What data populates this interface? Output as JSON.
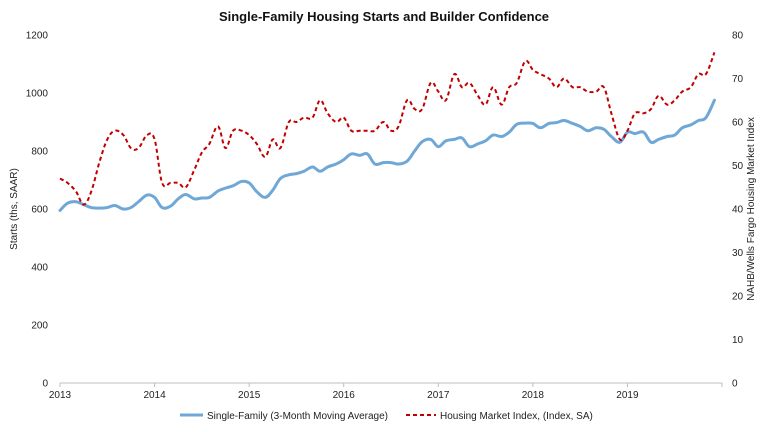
{
  "chart_data": {
    "type": "line",
    "title": "Single-Family Housing Starts and Builder Confidence",
    "ylabel": "Starts (ths, SAAR)",
    "y2label": "NAHB/Wells Fargo Housing Market Index",
    "ylim": [
      0,
      1200
    ],
    "y2lim": [
      0,
      80
    ],
    "yticks": [
      "0",
      "200",
      "400",
      "600",
      "800",
      "1000",
      "1200"
    ],
    "y2ticks": [
      "0",
      "10",
      "20",
      "30",
      "40",
      "50",
      "60",
      "70",
      "80"
    ],
    "xticks": [
      "2013",
      "2014",
      "2015",
      "2016",
      "2017",
      "2018",
      "2019"
    ],
    "xrange": [
      2013.0,
      2020.0
    ],
    "series": [
      {
        "name": "Single-Family (3-Month Moving Average)",
        "axis": "left",
        "color": "#6fa8d6",
        "style": "solid",
        "x": [
          2013.0,
          2013.08,
          2013.17,
          2013.25,
          2013.33,
          2013.42,
          2013.5,
          2013.58,
          2013.67,
          2013.75,
          2013.83,
          2013.92,
          2014.0,
          2014.08,
          2014.17,
          2014.25,
          2014.33,
          2014.42,
          2014.5,
          2014.58,
          2014.67,
          2014.75,
          2014.83,
          2014.92,
          2015.0,
          2015.08,
          2015.17,
          2015.25,
          2015.33,
          2015.42,
          2015.5,
          2015.58,
          2015.67,
          2015.75,
          2015.83,
          2015.92,
          2016.0,
          2016.08,
          2016.17,
          2016.25,
          2016.33,
          2016.42,
          2016.5,
          2016.58,
          2016.67,
          2016.75,
          2016.83,
          2016.92,
          2017.0,
          2017.08,
          2017.17,
          2017.25,
          2017.33,
          2017.42,
          2017.5,
          2017.58,
          2017.67,
          2017.75,
          2017.83,
          2017.92,
          2018.0,
          2018.08,
          2018.17,
          2018.25,
          2018.33,
          2018.42,
          2018.5,
          2018.58,
          2018.67,
          2018.75,
          2018.83,
          2018.92,
          2019.0,
          2019.08,
          2019.17,
          2019.25,
          2019.33,
          2019.42,
          2019.5,
          2019.58,
          2019.67,
          2019.75,
          2019.83,
          2019.92
        ],
        "values": [
          595,
          620,
          625,
          615,
          605,
          603,
          605,
          612,
          600,
          605,
          625,
          648,
          640,
          605,
          610,
          635,
          650,
          635,
          638,
          640,
          662,
          672,
          680,
          695,
          690,
          660,
          640,
          665,
          705,
          718,
          722,
          730,
          745,
          730,
          745,
          755,
          770,
          790,
          785,
          790,
          755,
          760,
          760,
          755,
          765,
          800,
          832,
          840,
          815,
          835,
          840,
          845,
          815,
          825,
          835,
          855,
          850,
          865,
          892,
          896,
          895,
          880,
          895,
          898,
          905,
          895,
          885,
          870,
          880,
          875,
          850,
          830,
          865,
          860,
          865,
          830,
          840,
          850,
          855,
          880,
          890,
          905,
          915,
          975
        ]
      },
      {
        "name": "Housing Market Index, (Index, SA)",
        "axis": "right",
        "color": "#c00000",
        "style": "dashed",
        "x": [
          2013.0,
          2013.08,
          2013.17,
          2013.25,
          2013.33,
          2013.42,
          2013.5,
          2013.58,
          2013.67,
          2013.75,
          2013.83,
          2013.92,
          2014.0,
          2014.08,
          2014.17,
          2014.25,
          2014.33,
          2014.42,
          2014.5,
          2014.58,
          2014.67,
          2014.75,
          2014.83,
          2014.92,
          2015.0,
          2015.08,
          2015.17,
          2015.25,
          2015.33,
          2015.42,
          2015.5,
          2015.58,
          2015.67,
          2015.75,
          2015.83,
          2015.92,
          2016.0,
          2016.08,
          2016.17,
          2016.25,
          2016.33,
          2016.42,
          2016.5,
          2016.58,
          2016.67,
          2016.75,
          2016.83,
          2016.92,
          2017.0,
          2017.08,
          2017.17,
          2017.25,
          2017.33,
          2017.42,
          2017.5,
          2017.58,
          2017.67,
          2017.75,
          2017.83,
          2017.92,
          2018.0,
          2018.08,
          2018.17,
          2018.25,
          2018.33,
          2018.42,
          2018.5,
          2018.58,
          2018.67,
          2018.75,
          2018.83,
          2018.92,
          2019.0,
          2019.08,
          2019.17,
          2019.25,
          2019.33,
          2019.42,
          2019.5,
          2019.58,
          2019.67,
          2019.75,
          2019.83,
          2019.92
        ],
        "values": [
          47,
          46,
          44,
          41,
          44,
          51,
          56,
          58,
          57,
          54,
          54,
          57,
          56,
          46,
          46,
          46,
          45,
          49,
          53,
          55,
          59,
          54,
          58,
          58,
          57,
          55,
          52,
          56,
          54,
          60,
          60,
          61,
          61,
          65,
          62,
          60,
          61,
          58,
          58,
          58,
          58,
          60,
          58,
          59,
          65,
          63,
          63,
          69,
          67,
          65,
          71,
          68,
          69,
          66,
          64,
          68,
          64,
          68,
          69,
          74,
          72,
          71,
          70,
          68,
          70,
          68,
          68,
          67,
          67,
          68,
          62,
          56,
          58,
          62,
          62,
          63,
          66,
          64,
          65,
          67,
          68,
          71,
          71,
          76
        ]
      }
    ],
    "legend_position": "bottom"
  }
}
